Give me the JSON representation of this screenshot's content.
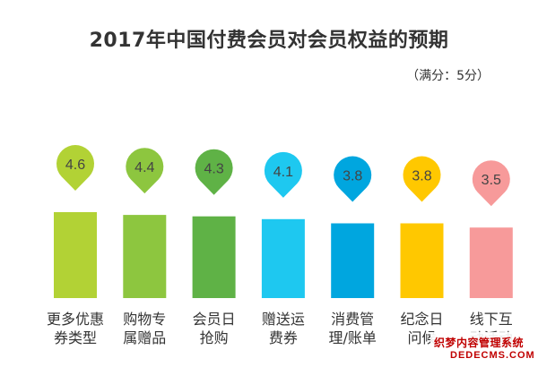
{
  "chart_data": {
    "type": "bar",
    "title": "2017年中国付费会员对会员权益的预期",
    "subtitle": "（满分：5分）",
    "categories": [
      "更多优惠\n券类型",
      "购物专\n属赠品",
      "会员日\n抢购",
      "赠送运\n费券",
      "消费管\n理/账单",
      "纪念日\n问候",
      "线下互\n动活动"
    ],
    "values": [
      4.6,
      4.4,
      4.3,
      4.1,
      3.8,
      3.8,
      3.5
    ],
    "value_labels": [
      "4.6",
      "4.4",
      "4.3",
      "4.1",
      "3.8",
      "3.8",
      "3.5"
    ],
    "colors": [
      "#b2d235",
      "#8dc63f",
      "#5fb246",
      "#1ec8f0",
      "#00a6df",
      "#ffc800",
      "#f79a9a"
    ],
    "ylim": [
      0,
      5
    ],
    "grid": false,
    "legend": "none"
  },
  "watermark": {
    "line1": "织梦内容管理系统",
    "line2": "DEDECMS.COM"
  }
}
